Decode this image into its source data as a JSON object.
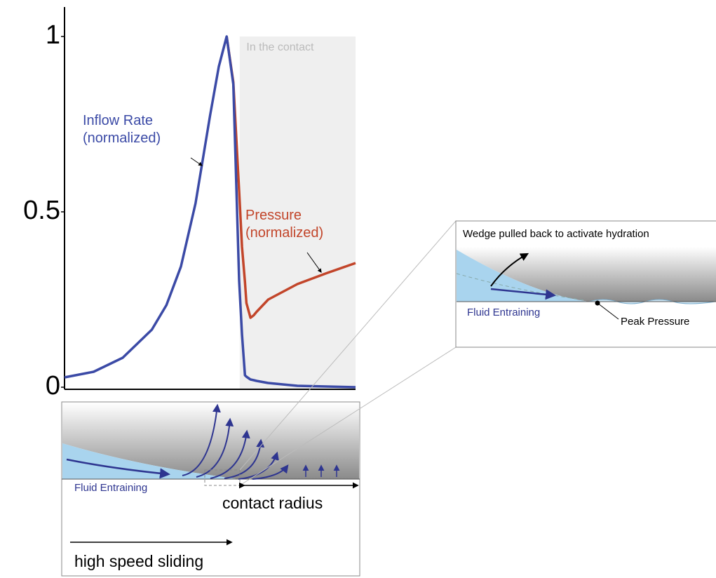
{
  "chart_data": {
    "type": "line",
    "x": [
      0,
      0.1,
      0.2,
      0.3,
      0.35,
      0.4,
      0.45,
      0.5,
      0.53,
      0.557,
      0.58,
      0.6,
      0.61,
      0.62,
      0.625,
      0.639,
      0.65,
      0.66,
      0.7,
      0.8,
      0.9,
      1.0
    ],
    "xlim": [
      0,
      1
    ],
    "ylim": [
      0,
      1.084
    ],
    "yticks": [
      0,
      0.5,
      1
    ],
    "series": [
      {
        "name": "Inflow Rate (normalized)",
        "color": "#3b4aa6",
        "values": [
          0.028,
          0.044,
          0.084,
          0.164,
          0.234,
          0.344,
          0.524,
          0.774,
          0.914,
          1.0,
          0.864,
          0.304,
          0.15,
          0.034,
          0.03,
          0.022,
          0.02,
          0.018,
          0.012,
          0.004,
          0.002,
          0.0
        ]
      },
      {
        "name": "Pressure (normalized)",
        "color": "#c2452a",
        "values": [
          null,
          null,
          null,
          null,
          null,
          null,
          null,
          null,
          null,
          1.0,
          0.87,
          0.56,
          0.4,
          0.3,
          0.24,
          0.198,
          0.205,
          0.215,
          0.25,
          0.294,
          0.325,
          0.354
        ]
      }
    ],
    "shaded_region": {
      "label": "In the contact",
      "xlim": [
        0.602,
        1
      ]
    }
  },
  "sliding_diagram": {
    "fluid_label": "Fluid Entraining",
    "radius_label": "contact radius",
    "motion_label": "high speed sliding"
  },
  "inset": {
    "title": "Wedge pulled back to activate hydration",
    "fluid_label": "Fluid Entraining",
    "peak_label": "Peak Pressure"
  }
}
